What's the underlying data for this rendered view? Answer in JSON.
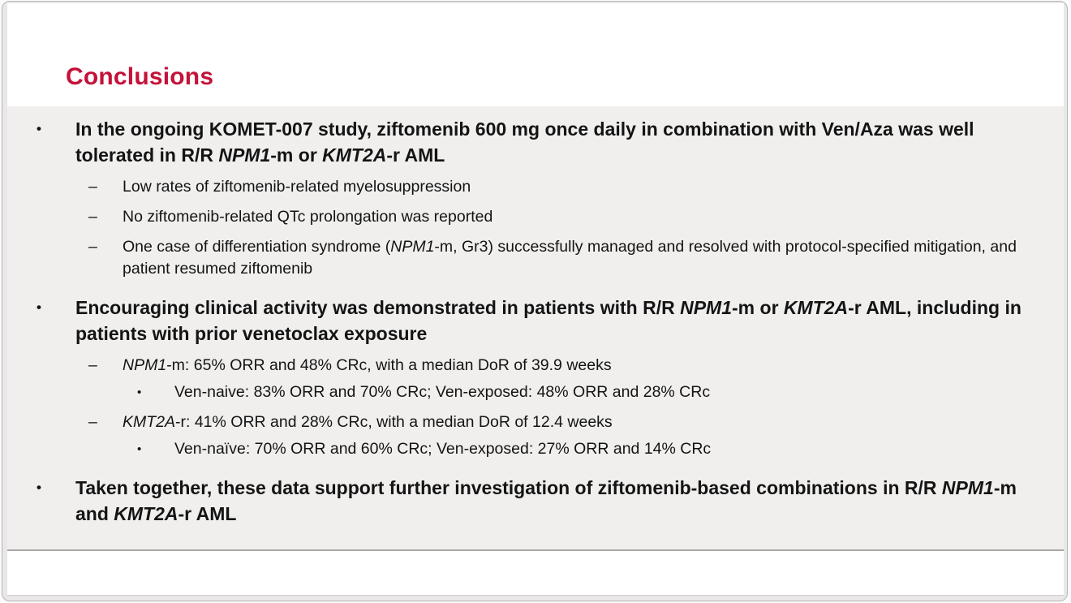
{
  "slide": {
    "title": "Conclusions",
    "accent_color": "#c41239",
    "panel_bg": "#f0efee",
    "bullets": [
      {
        "level": 1,
        "marker": "•",
        "bold": true,
        "runs": [
          {
            "t": "In the ongoing KOMET-007 study, ziftomenib 600 mg once daily in combination with Ven/Aza was well tolerated in R/R "
          },
          {
            "t": "NPM1",
            "i": true
          },
          {
            "t": "-m or "
          },
          {
            "t": "KMT2A",
            "i": true
          },
          {
            "t": "-r AML"
          }
        ]
      },
      {
        "level": 2,
        "marker": "–",
        "bold": false,
        "runs": [
          {
            "t": "Low rates of ziftomenib-related myelosuppression"
          }
        ]
      },
      {
        "level": 2,
        "marker": "–",
        "bold": false,
        "runs": [
          {
            "t": "No ziftomenib-related QTc prolongation was reported"
          }
        ]
      },
      {
        "level": 2,
        "marker": "–",
        "bold": false,
        "runs": [
          {
            "t": "One case of differentiation syndrome ("
          },
          {
            "t": "NPM1",
            "i": true
          },
          {
            "t": "-m, Gr3) successfully managed and resolved with protocol-specified mitigation, and patient resumed ziftomenib"
          }
        ]
      },
      {
        "level": 1,
        "marker": "•",
        "bold": true,
        "runs": [
          {
            "t": "Encouraging clinical activity was demonstrated in patients with R/R "
          },
          {
            "t": "NPM1",
            "i": true
          },
          {
            "t": "-m or "
          },
          {
            "t": "KMT2A",
            "i": true
          },
          {
            "t": "-r AML, including in patients with prior venetoclax exposure"
          }
        ]
      },
      {
        "level": 2,
        "marker": "–",
        "bold": false,
        "runs": [
          {
            "t": "NPM1",
            "i": true
          },
          {
            "t": "-m: 65% ORR and 48% CRc, with a median DoR of 39.9 weeks"
          }
        ]
      },
      {
        "level": 3,
        "marker": "•",
        "bold": false,
        "runs": [
          {
            "t": "Ven-naive: 83% ORR and 70% CRc; Ven-exposed: 48% ORR and 28% CRc"
          }
        ]
      },
      {
        "level": 2,
        "marker": "–",
        "bold": false,
        "runs": [
          {
            "t": "KMT2A",
            "i": true
          },
          {
            "t": "-r: 41% ORR and 28% CRc, with a median DoR of 12.4 weeks"
          }
        ]
      },
      {
        "level": 3,
        "marker": "•",
        "bold": false,
        "runs": [
          {
            "t": "Ven-naïve: 70% ORR and 60% CRc; Ven-exposed: 27% ORR and 14% CRc"
          }
        ]
      },
      {
        "level": 1,
        "marker": "•",
        "bold": true,
        "runs": [
          {
            "t": "Taken together, these data support further investigation of ziftomenib-based combinations in R/R "
          },
          {
            "t": "NPM1",
            "i": true
          },
          {
            "t": "-m and "
          },
          {
            "t": "KMT2A",
            "i": true
          },
          {
            "t": "-r AML"
          }
        ]
      }
    ]
  }
}
